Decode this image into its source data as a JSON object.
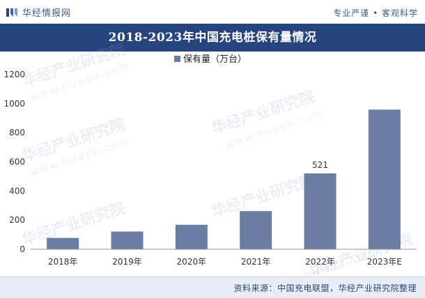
{
  "brand": {
    "name": "华经情报网",
    "tagline": "专业严谨 • 客观科学",
    "watermark": "华经产业研究院",
    "watermark_url": "www.huaon.com"
  },
  "colors": {
    "title_bg": "#26457f",
    "bar": "#6b7da3",
    "footer_bg": "#e9edf4",
    "text_dark": "#26457f"
  },
  "chart_data": {
    "type": "bar",
    "title": "2018-2023年中国充电桩保有量情况",
    "categories": [
      "2018年",
      "2019年",
      "2020年",
      "2021年",
      "2022年",
      "2023年E"
    ],
    "series": [
      {
        "name": "保有量（万台）",
        "values": [
          78,
          122,
          168,
          262,
          521,
          959
        ]
      }
    ],
    "data_labels": [
      {
        "category": "2022年",
        "text": "521"
      }
    ],
    "ylim": [
      0,
      1200
    ],
    "yticks": [
      0,
      200,
      400,
      600,
      800,
      1000,
      1200
    ],
    "ytick_labels": [
      "0",
      "200",
      "400",
      "600",
      "800",
      "1000",
      "1200"
    ],
    "grid": false,
    "legend_position": "top-center"
  },
  "footer": {
    "source": "资料来源：中国充电联盟，华经产业研究院整理"
  }
}
